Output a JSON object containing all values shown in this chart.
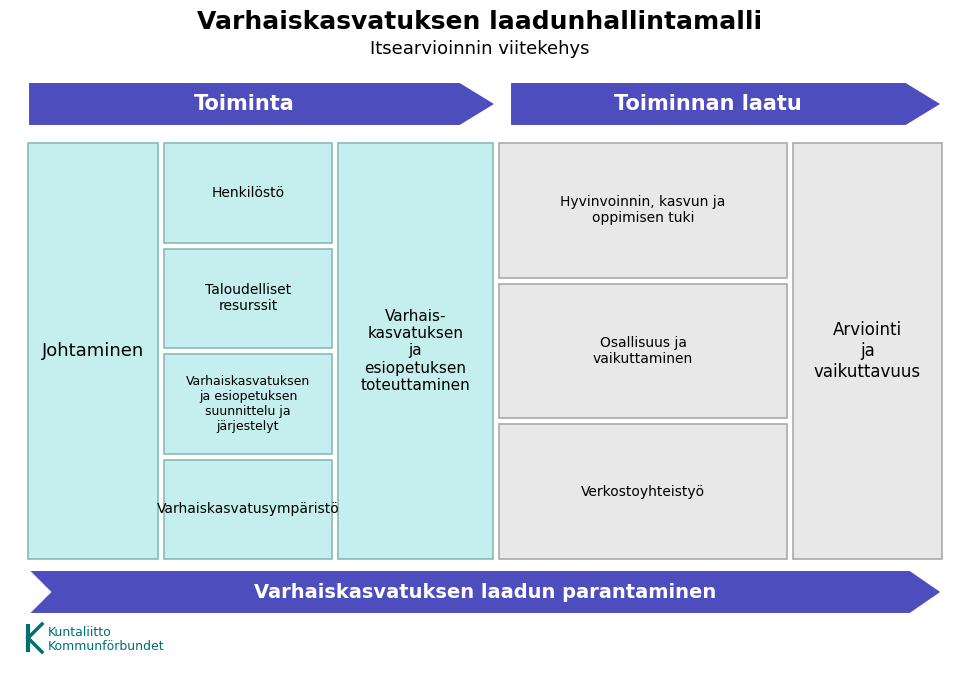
{
  "title": "Varhaiskasvatuksen laadunhallintamalli",
  "subtitle": "Itsearvioinnin viitekehys",
  "arrow1_label": "Toiminta",
  "arrow2_label": "Toiminnan laatu",
  "arrow3_label": "Varhaiskasvatuksen laadun parantaminen",
  "col1_label": "Johtaminen",
  "col2_boxes": [
    "Henkilöstö",
    "Taloudelliset\nresurssit",
    "Varhaiskasvatuksen\nja esiopetuksen\nsuunnittelu ja\njärjestelyt",
    "Varhaiskasvatusympäristö"
  ],
  "col3_label": "Varhais-\nkasvatuksen\nja\nesiopetuksen\ntoteuttaminen",
  "col4_boxes": [
    "Hyvinvoinnin, kasvun ja\noppimisen tuki",
    "Osallisuus ja\nvaikuttaminen",
    "Verkostoyhteistyö"
  ],
  "col5_label": "Arviointi\nja\nvaikuttavuus",
  "arrow_color": "#4d4dbe",
  "box_color_light_blue": "#c5eeee",
  "box_color_light_gray": "#e8e8e8",
  "bottom_arrow_color": "#4d4dbe",
  "title_color": "#000000",
  "bg_color": "#ffffff",
  "kuntaliitto_color": "#007070",
  "border_blue": "#88bbbb",
  "border_gray": "#aaaaaa"
}
